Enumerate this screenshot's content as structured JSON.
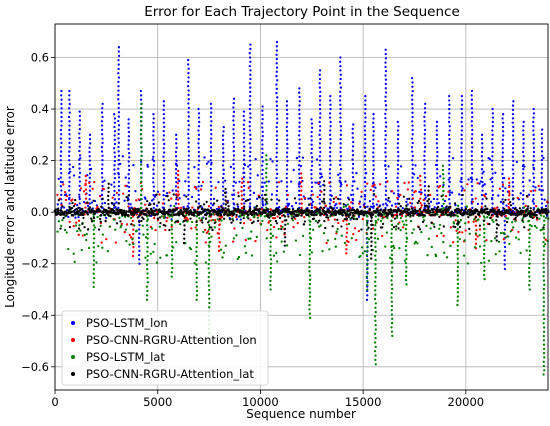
{
  "chart_data": {
    "type": "scatter",
    "title": "Error for Each Trajectory Point in the Sequence",
    "xlabel": "Sequence number",
    "ylabel": "Longitude error and latitude error",
    "xlim": [
      0,
      24000
    ],
    "ylim": [
      -0.69,
      0.73
    ],
    "x_ticks": [
      0,
      5000,
      10000,
      15000,
      20000
    ],
    "x_tick_labels": [
      "0",
      "5000",
      "10000",
      "15000",
      "20000"
    ],
    "y_ticks": [
      -0.6,
      -0.4,
      -0.2,
      0.0,
      0.2,
      0.4,
      0.6
    ],
    "y_tick_labels": [
      "−0.6",
      "−0.4",
      "−0.2",
      "0.0",
      "0.2",
      "0.4",
      "0.6"
    ],
    "grid": true,
    "legend_position": "lower-left",
    "series": [
      {
        "name": "PSO-LSTM_lon",
        "color": "#0000ff",
        "baseline_band": [
          -0.03,
          0.22
        ],
        "spikes": [
          {
            "x": 300,
            "y": 0.47
          },
          {
            "x": 700,
            "y": 0.47
          },
          {
            "x": 1200,
            "y": 0.39
          },
          {
            "x": 1700,
            "y": 0.3
          },
          {
            "x": 2300,
            "y": 0.42
          },
          {
            "x": 2900,
            "y": 0.38
          },
          {
            "x": 3100,
            "y": 0.64
          },
          {
            "x": 3600,
            "y": 0.36
          },
          {
            "x": 4200,
            "y": 0.47
          },
          {
            "x": 4800,
            "y": 0.38
          },
          {
            "x": 5300,
            "y": 0.43
          },
          {
            "x": 5900,
            "y": 0.3
          },
          {
            "x": 6500,
            "y": 0.59
          },
          {
            "x": 7000,
            "y": 0.4
          },
          {
            "x": 7600,
            "y": 0.42
          },
          {
            "x": 8200,
            "y": 0.33
          },
          {
            "x": 8700,
            "y": 0.44
          },
          {
            "x": 9200,
            "y": 0.39
          },
          {
            "x": 9500,
            "y": 0.65
          },
          {
            "x": 10100,
            "y": 0.41
          },
          {
            "x": 10800,
            "y": 0.66
          },
          {
            "x": 11300,
            "y": 0.43
          },
          {
            "x": 11900,
            "y": 0.48
          },
          {
            "x": 12500,
            "y": 0.36
          },
          {
            "x": 12900,
            "y": 0.55
          },
          {
            "x": 13400,
            "y": 0.45
          },
          {
            "x": 13900,
            "y": 0.6
          },
          {
            "x": 14500,
            "y": 0.34
          },
          {
            "x": 15100,
            "y": 0.45
          },
          {
            "x": 15500,
            "y": 0.38
          },
          {
            "x": 16100,
            "y": 0.63
          },
          {
            "x": 16700,
            "y": 0.35
          },
          {
            "x": 17400,
            "y": 0.52
          },
          {
            "x": 18000,
            "y": 0.42
          },
          {
            "x": 18600,
            "y": 0.35
          },
          {
            "x": 19200,
            "y": 0.45
          },
          {
            "x": 19800,
            "y": 0.45
          },
          {
            "x": 20300,
            "y": 0.47
          },
          {
            "x": 20800,
            "y": 0.3
          },
          {
            "x": 21300,
            "y": 0.4
          },
          {
            "x": 21800,
            "y": 0.38
          },
          {
            "x": 22300,
            "y": 0.43
          },
          {
            "x": 22800,
            "y": 0.35
          },
          {
            "x": 23300,
            "y": 0.4
          },
          {
            "x": 23700,
            "y": 0.32
          },
          {
            "x": 15200,
            "y": -0.34
          },
          {
            "x": 4100,
            "y": -0.2
          },
          {
            "x": 21900,
            "y": -0.22
          }
        ]
      },
      {
        "name": "PSO-CNN-RGRU-Attention_lon",
        "color": "#ff0000",
        "baseline_band": [
          -0.12,
          0.12
        ],
        "spikes": [
          {
            "x": 1500,
            "y": 0.14
          },
          {
            "x": 6000,
            "y": 0.16
          },
          {
            "x": 9100,
            "y": 0.13
          },
          {
            "x": 12000,
            "y": 0.15
          },
          {
            "x": 17800,
            "y": 0.14
          },
          {
            "x": 22100,
            "y": 0.13
          },
          {
            "x": 3800,
            "y": -0.17
          },
          {
            "x": 8000,
            "y": -0.15
          },
          {
            "x": 14200,
            "y": -0.16
          },
          {
            "x": 20500,
            "y": -0.14
          }
        ]
      },
      {
        "name": "PSO-LSTM_lat",
        "color": "#008000",
        "baseline_band": [
          -0.2,
          0.03
        ],
        "spikes": [
          {
            "x": 1900,
            "y": -0.29
          },
          {
            "x": 4500,
            "y": -0.34
          },
          {
            "x": 5700,
            "y": -0.25
          },
          {
            "x": 6900,
            "y": -0.34
          },
          {
            "x": 7500,
            "y": -0.47
          },
          {
            "x": 10500,
            "y": -0.3
          },
          {
            "x": 12400,
            "y": -0.41
          },
          {
            "x": 15200,
            "y": -0.3
          },
          {
            "x": 15600,
            "y": -0.59
          },
          {
            "x": 16400,
            "y": -0.48
          },
          {
            "x": 17100,
            "y": -0.28
          },
          {
            "x": 19600,
            "y": -0.36
          },
          {
            "x": 20900,
            "y": -0.26
          },
          {
            "x": 23100,
            "y": -0.3
          },
          {
            "x": 23800,
            "y": -0.63
          },
          {
            "x": 4200,
            "y": 0.42
          },
          {
            "x": 10300,
            "y": 0.22
          },
          {
            "x": 18900,
            "y": 0.18
          }
        ]
      },
      {
        "name": "PSO-CNN-RGRU-Attention_lat",
        "color": "#000000",
        "baseline_band": [
          -0.07,
          0.07
        ],
        "spikes": [
          {
            "x": 2600,
            "y": 0.11
          },
          {
            "x": 8300,
            "y": 0.09
          },
          {
            "x": 13100,
            "y": 0.12
          },
          {
            "x": 18200,
            "y": 0.1
          },
          {
            "x": 15400,
            "y": -0.18
          },
          {
            "x": 6300,
            "y": -0.12
          },
          {
            "x": 11200,
            "y": -0.13
          },
          {
            "x": 21500,
            "y": -0.11
          }
        ]
      }
    ]
  }
}
